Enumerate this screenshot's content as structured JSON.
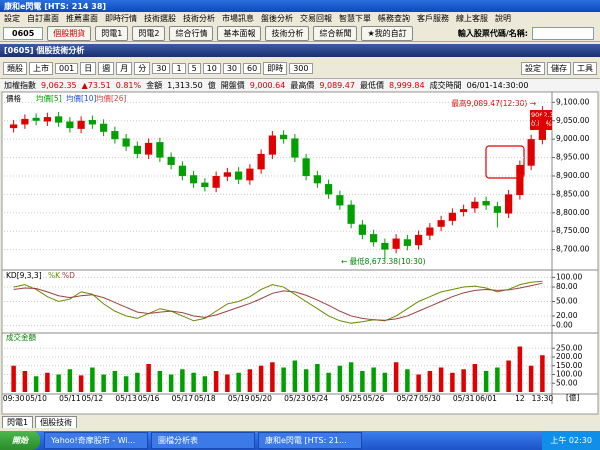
{
  "window": {
    "title": "康和e閃電 [HTS: 214 38]"
  },
  "menu": [
    "設定",
    "自訂畫面",
    "推薦畫面",
    "即時行情",
    "技術選股",
    "技術分析",
    "市場訊息",
    "盤後分析",
    "交易回報",
    "智慧下單",
    "帳務查詢",
    "客戶服務",
    "線上客服",
    "說明"
  ],
  "toolbar": {
    "code": "0605",
    "buttons": [
      "個股期貨",
      "閃電1",
      "閃電2",
      "綜合行情",
      "基本面報",
      "技術分析",
      "綜合新聞",
      "★我的自訂"
    ],
    "search_label": "輸入股票代碼/名稱:"
  },
  "panel": {
    "title": "[0605] 個股技術分析",
    "controls": [
      "類股",
      "上市",
      "001",
      "日",
      "週",
      "月",
      "分",
      "30",
      "1",
      "5",
      "10",
      "30",
      "60",
      "即時",
      "300"
    ],
    "right_buttons": [
      "設定",
      "儲存",
      "工具"
    ]
  },
  "quote": [
    {
      "text": "加權指數",
      "color": "#000000"
    },
    {
      "text": "9,062.35",
      "color": "#d00000"
    },
    {
      "text": "▲73.51",
      "color": "#d00000"
    },
    {
      "text": "0.81%",
      "color": "#d00000"
    },
    {
      "text": "金額",
      "color": "#000000"
    },
    {
      "text": "1,313.50",
      "color": "#000000"
    },
    {
      "text": "億",
      "color": "#000000"
    },
    {
      "text": "開盤價",
      "color": "#000000"
    },
    {
      "text": "9,000.64",
      "color": "#d00000"
    },
    {
      "text": "最高價",
      "color": "#000000"
    },
    {
      "text": "9,089.47",
      "color": "#d00000"
    },
    {
      "text": "最低價",
      "color": "#000000"
    },
    {
      "text": "8,999.84",
      "color": "#d00000"
    },
    {
      "text": "成交時間",
      "color": "#000000"
    },
    {
      "text": "06/01-14:30:00",
      "color": "#000000"
    }
  ],
  "chart_data": {
    "type": "candlestick",
    "legend": [
      {
        "name": "價格",
        "color": "#000000"
      },
      {
        "name": "均價[5]",
        "color": "#00a000"
      },
      {
        "name": "均價[10]",
        "color": "#2050e0"
      },
      {
        "name": "均價[26]",
        "color": "#e04040"
      }
    ],
    "up_color": "#e00000",
    "down_color": "#00a000",
    "categories": [
      "09:30",
      null,
      "05/10",
      null,
      null,
      "05/11",
      null,
      "05/12",
      null,
      null,
      "05/13",
      null,
      "05/16",
      null,
      null,
      "05/17",
      null,
      "05/18",
      null,
      null,
      "05/19",
      null,
      "05/20",
      null,
      null,
      "05/23",
      null,
      "05/24",
      null,
      null,
      "05/25",
      null,
      "05/26",
      null,
      null,
      "05/27",
      null,
      "05/30",
      null,
      null,
      "05/31",
      null,
      "06/01",
      null,
      null,
      "12",
      null,
      "13:30"
    ],
    "open": [
      9030,
      9040,
      9058,
      9048,
      9062,
      9048,
      9028,
      9052,
      9042,
      9022,
      9002,
      8982,
      8958,
      8992,
      8952,
      8928,
      8902,
      8882,
      8868,
      8898,
      8912,
      8888,
      8918,
      8958,
      9012,
      9002,
      8948,
      8902,
      8878,
      8848,
      8822,
      8768,
      8742,
      8718,
      8702,
      8728,
      8712,
      8738,
      8762,
      8778,
      8802,
      8812,
      8832,
      8818,
      8798,
      8848,
      8928,
      8998
    ],
    "high": [
      9052,
      9067,
      9070,
      9072,
      9074,
      9060,
      9062,
      9064,
      9054,
      9034,
      9014,
      8994,
      9002,
      9004,
      8964,
      8940,
      8914,
      8894,
      8912,
      8922,
      8924,
      8932,
      8972,
      9022,
      9024,
      9014,
      8960,
      8914,
      8890,
      8860,
      8834,
      8780,
      8754,
      8730,
      8742,
      8740,
      8752,
      8772,
      8792,
      8812,
      8822,
      8842,
      8844,
      8830,
      8862,
      8942,
      9012,
      9089.47
    ],
    "low": [
      9018,
      9028,
      9038,
      9036,
      9033,
      9018,
      9016,
      9028,
      9008,
      8988,
      8968,
      8948,
      8946,
      8938,
      8918,
      8888,
      8868,
      8858,
      8856,
      8886,
      8878,
      8876,
      8906,
      8946,
      8988,
      8938,
      8888,
      8868,
      8838,
      8808,
      8758,
      8728,
      8708,
      8673.38,
      8690,
      8698,
      8700,
      8726,
      8750,
      8766,
      8790,
      8800,
      8808,
      8760,
      8786,
      8836,
      8916,
      8986
    ],
    "close": [
      9040,
      9055,
      9050,
      9060,
      9045,
      9030,
      9050,
      9040,
      9020,
      9000,
      8980,
      8960,
      8990,
      8950,
      8930,
      8900,
      8880,
      8870,
      8900,
      8910,
      8890,
      8920,
      8960,
      9010,
      9000,
      8950,
      8900,
      8880,
      8850,
      8820,
      8770,
      8740,
      8720,
      8700,
      8730,
      8710,
      8740,
      8760,
      8780,
      8800,
      8810,
      8830,
      8820,
      8800,
      8850,
      8930,
      9000,
      9062.35
    ],
    "ylim": [
      8650,
      9120
    ],
    "yticks": [
      {
        "value": 9100,
        "label": "9,100.00"
      },
      {
        "value": 9050,
        "label": "9,050.00"
      },
      {
        "value": 9000,
        "label": "9,000.00"
      },
      {
        "value": 8950,
        "label": "8,950.00"
      },
      {
        "value": 8900,
        "label": "8,900.00"
      },
      {
        "value": 8850,
        "label": "8,850.00"
      },
      {
        "value": 8800,
        "label": "8,800.00"
      },
      {
        "value": 8750,
        "label": "8,750.00"
      },
      {
        "value": 8700,
        "label": "8,700.00"
      }
    ],
    "annotations": [
      "最高9,089.47(12:30) →",
      "← 最低8,673.38(10:30)"
    ],
    "price_tags": [
      "9062.35",
      "0.81%"
    ],
    "grid": true,
    "kd": {
      "title": "KD[9,3,3]",
      "series": [
        {
          "name": "%K",
          "color": "#6a8a00",
          "values": [
            80,
            85,
            75,
            60,
            50,
            55,
            70,
            65,
            45,
            30,
            20,
            15,
            25,
            35,
            30,
            20,
            10,
            15,
            30,
            45,
            50,
            60,
            75,
            85,
            80,
            65,
            50,
            35,
            20,
            10,
            5,
            8,
            12,
            10,
            20,
            35,
            50,
            60,
            70,
            75,
            80,
            82,
            78,
            70,
            75,
            85,
            90,
            92
          ]
        },
        {
          "name": "%D",
          "color": "#a04040",
          "values": [
            75,
            78,
            77,
            70,
            62,
            58,
            62,
            64,
            58,
            48,
            38,
            28,
            25,
            28,
            30,
            27,
            20,
            17,
            22,
            30,
            38,
            46,
            56,
            67,
            72,
            70,
            63,
            53,
            42,
            30,
            20,
            15,
            12,
            11,
            14,
            20,
            30,
            40,
            50,
            60,
            68,
            73,
            75,
            73,
            74,
            78,
            83,
            88
          ]
        }
      ],
      "ylim": [
        -5,
        105
      ],
      "yticks": [
        {
          "value": 100,
          "label": "100.00"
        },
        {
          "value": 80,
          "label": "80.00"
        },
        {
          "value": 50,
          "label": "50.00"
        },
        {
          "value": 20,
          "label": "20.00"
        },
        {
          "value": 0,
          "label": "0.00"
        }
      ]
    },
    "volume": {
      "title": "成交金額",
      "unit": "[億]",
      "values": [
        150,
        120,
        90,
        110,
        100,
        130,
        95,
        140,
        100,
        120,
        90,
        110,
        160,
        120,
        100,
        130,
        110,
        90,
        120,
        100,
        110,
        130,
        150,
        170,
        140,
        180,
        130,
        160,
        110,
        150,
        170,
        120,
        140,
        110,
        170,
        130,
        100,
        120,
        140,
        110,
        130,
        160,
        120,
        140,
        180,
        260,
        150,
        210
      ],
      "ylim": [
        0,
        280
      ],
      "yticks": [
        {
          "value": 250,
          "label": "250.00"
        },
        {
          "value": 200,
          "label": "200.00"
        },
        {
          "value": 150,
          "label": "150.00"
        },
        {
          "value": 100,
          "label": "100.00"
        },
        {
          "value": 50,
          "label": "50.00"
        }
      ]
    }
  },
  "tabs": [
    "閃電1",
    "個股技術"
  ],
  "taskbar": {
    "start": "開始",
    "items": [
      "Yahoo!奇摩股市 - Wi...",
      "圖檔分析表",
      "康和e閃電 [HTS: 21..."
    ],
    "clock": "上午 02:30"
  }
}
